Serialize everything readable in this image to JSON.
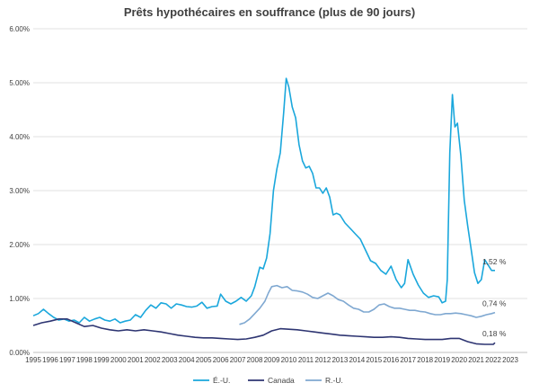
{
  "chart_data": {
    "type": "line",
    "title": "Prêts hypothécaires en souffrance (plus de 90 jours)",
    "xlabel": "",
    "ylabel": "",
    "ylim": [
      0,
      6
    ],
    "xlim": [
      1995,
      2024
    ],
    "y_ticks": [
      0,
      1,
      2,
      3,
      4,
      5,
      6
    ],
    "y_tick_labels": [
      "0.00%",
      "1.00%",
      "2.00%",
      "3.00%",
      "4.00%",
      "5.00%",
      "6.00%"
    ],
    "x_ticks": [
      1995,
      1996,
      1997,
      1998,
      1999,
      2000,
      2001,
      2002,
      2003,
      2004,
      2005,
      2006,
      2007,
      2008,
      2009,
      2010,
      2011,
      2012,
      2013,
      2014,
      2015,
      2016,
      2017,
      2018,
      2019,
      2020,
      2021,
      2022,
      2023
    ],
    "x_tick_labels": [
      "1995",
      "1996",
      "1997",
      "1998",
      "1999",
      "2000",
      "2001",
      "2002",
      "2003",
      "2004",
      "2005",
      "2006",
      "2007",
      "2008",
      "2009",
      "2010",
      "2011",
      "2012",
      "2013",
      "2014",
      "2015",
      "2016",
      "2017",
      "2018",
      "2019",
      "2020",
      "2021",
      "2022",
      "2023"
    ],
    "grid": "horizontal",
    "legend_position": "bottom",
    "series": [
      {
        "name": "É.-U.",
        "color": "#1aa7dc",
        "end_label": "1,52 %",
        "points": [
          [
            1995,
            0.68
          ],
          [
            1995.3,
            0.72
          ],
          [
            1995.6,
            0.8
          ],
          [
            1995.9,
            0.72
          ],
          [
            1996.2,
            0.65
          ],
          [
            1996.5,
            0.6
          ],
          [
            1996.8,
            0.62
          ],
          [
            1997.1,
            0.58
          ],
          [
            1997.4,
            0.6
          ],
          [
            1997.7,
            0.55
          ],
          [
            1998,
            0.65
          ],
          [
            1998.3,
            0.58
          ],
          [
            1998.6,
            0.62
          ],
          [
            1998.9,
            0.65
          ],
          [
            1999.2,
            0.6
          ],
          [
            1999.5,
            0.58
          ],
          [
            1999.8,
            0.62
          ],
          [
            2000.1,
            0.55
          ],
          [
            2000.4,
            0.58
          ],
          [
            2000.7,
            0.6
          ],
          [
            2001,
            0.7
          ],
          [
            2001.3,
            0.65
          ],
          [
            2001.6,
            0.78
          ],
          [
            2001.9,
            0.88
          ],
          [
            2002.2,
            0.82
          ],
          [
            2002.5,
            0.92
          ],
          [
            2002.8,
            0.9
          ],
          [
            2003.1,
            0.82
          ],
          [
            2003.4,
            0.9
          ],
          [
            2003.7,
            0.88
          ],
          [
            2004,
            0.85
          ],
          [
            2004.3,
            0.84
          ],
          [
            2004.6,
            0.86
          ],
          [
            2004.9,
            0.93
          ],
          [
            2005.2,
            0.82
          ],
          [
            2005.5,
            0.85
          ],
          [
            2005.8,
            0.86
          ],
          [
            2006,
            1.08
          ],
          [
            2006.3,
            0.95
          ],
          [
            2006.6,
            0.9
          ],
          [
            2006.9,
            0.95
          ],
          [
            2007.2,
            1.02
          ],
          [
            2007.5,
            0.95
          ],
          [
            2007.8,
            1.05
          ],
          [
            2008,
            1.22
          ],
          [
            2008.3,
            1.58
          ],
          [
            2008.5,
            1.55
          ],
          [
            2008.7,
            1.75
          ],
          [
            2008.9,
            2.2
          ],
          [
            2009.1,
            3.0
          ],
          [
            2009.3,
            3.4
          ],
          [
            2009.5,
            3.7
          ],
          [
            2009.7,
            4.45
          ],
          [
            2009.85,
            5.08
          ],
          [
            2010,
            4.92
          ],
          [
            2010.2,
            4.55
          ],
          [
            2010.4,
            4.35
          ],
          [
            2010.6,
            3.85
          ],
          [
            2010.8,
            3.55
          ],
          [
            2011,
            3.42
          ],
          [
            2011.2,
            3.45
          ],
          [
            2011.4,
            3.32
          ],
          [
            2011.6,
            3.05
          ],
          [
            2011.8,
            3.05
          ],
          [
            2012,
            2.95
          ],
          [
            2012.2,
            3.05
          ],
          [
            2012.4,
            2.88
          ],
          [
            2012.6,
            2.55
          ],
          [
            2012.8,
            2.58
          ],
          [
            2013,
            2.55
          ],
          [
            2013.3,
            2.4
          ],
          [
            2013.6,
            2.3
          ],
          [
            2013.9,
            2.2
          ],
          [
            2014.2,
            2.1
          ],
          [
            2014.5,
            1.9
          ],
          [
            2014.8,
            1.7
          ],
          [
            2015.1,
            1.65
          ],
          [
            2015.4,
            1.52
          ],
          [
            2015.7,
            1.45
          ],
          [
            2016,
            1.6
          ],
          [
            2016.3,
            1.35
          ],
          [
            2016.6,
            1.2
          ],
          [
            2016.8,
            1.28
          ],
          [
            2017,
            1.72
          ],
          [
            2017.3,
            1.45
          ],
          [
            2017.6,
            1.25
          ],
          [
            2017.9,
            1.1
          ],
          [
            2018.2,
            1.02
          ],
          [
            2018.5,
            1.05
          ],
          [
            2018.8,
            1.03
          ],
          [
            2019,
            0.92
          ],
          [
            2019.2,
            0.95
          ],
          [
            2019.3,
            1.35
          ],
          [
            2019.45,
            3.7
          ],
          [
            2019.6,
            4.78
          ],
          [
            2019.75,
            4.18
          ],
          [
            2019.9,
            4.25
          ],
          [
            2020.1,
            3.65
          ],
          [
            2020.3,
            2.82
          ],
          [
            2020.5,
            2.35
          ],
          [
            2020.7,
            1.92
          ],
          [
            2020.9,
            1.48
          ],
          [
            2021.1,
            1.28
          ],
          [
            2021.3,
            1.35
          ],
          [
            2021.5,
            1.72
          ],
          [
            2021.7,
            1.62
          ],
          [
            2021.9,
            1.52
          ],
          [
            2022.1,
            1.52
          ]
        ]
      },
      {
        "name": "Canada",
        "color": "#2e3572",
        "end_label": "0,18 %",
        "points": [
          [
            1995,
            0.5
          ],
          [
            1995.5,
            0.55
          ],
          [
            1996,
            0.58
          ],
          [
            1996.5,
            0.62
          ],
          [
            1997,
            0.62
          ],
          [
            1997.5,
            0.55
          ],
          [
            1998,
            0.48
          ],
          [
            1998.5,
            0.5
          ],
          [
            1999,
            0.45
          ],
          [
            1999.5,
            0.42
          ],
          [
            2000,
            0.4
          ],
          [
            2000.5,
            0.42
          ],
          [
            2001,
            0.4
          ],
          [
            2001.5,
            0.42
          ],
          [
            2002,
            0.4
          ],
          [
            2002.5,
            0.38
          ],
          [
            2003,
            0.35
          ],
          [
            2003.5,
            0.32
          ],
          [
            2004,
            0.3
          ],
          [
            2004.5,
            0.28
          ],
          [
            2005,
            0.27
          ],
          [
            2005.5,
            0.27
          ],
          [
            2006,
            0.26
          ],
          [
            2006.5,
            0.25
          ],
          [
            2007,
            0.24
          ],
          [
            2007.5,
            0.25
          ],
          [
            2008,
            0.28
          ],
          [
            2008.5,
            0.32
          ],
          [
            2009,
            0.4
          ],
          [
            2009.5,
            0.44
          ],
          [
            2010,
            0.43
          ],
          [
            2010.5,
            0.42
          ],
          [
            2011,
            0.4
          ],
          [
            2011.5,
            0.38
          ],
          [
            2012,
            0.36
          ],
          [
            2012.5,
            0.34
          ],
          [
            2013,
            0.32
          ],
          [
            2013.5,
            0.31
          ],
          [
            2014,
            0.3
          ],
          [
            2014.5,
            0.29
          ],
          [
            2015,
            0.28
          ],
          [
            2015.5,
            0.28
          ],
          [
            2016,
            0.29
          ],
          [
            2016.5,
            0.28
          ],
          [
            2017,
            0.26
          ],
          [
            2017.5,
            0.25
          ],
          [
            2018,
            0.24
          ],
          [
            2018.5,
            0.24
          ],
          [
            2019,
            0.24
          ],
          [
            2019.5,
            0.26
          ],
          [
            2020,
            0.26
          ],
          [
            2020.5,
            0.2
          ],
          [
            2021,
            0.16
          ],
          [
            2021.5,
            0.15
          ],
          [
            2022,
            0.15
          ],
          [
            2022.1,
            0.18
          ]
        ]
      },
      {
        "name": "R.-U.",
        "color": "#7fa8d1",
        "end_label": "0,74 %",
        "points": [
          [
            2007.1,
            0.52
          ],
          [
            2007.4,
            0.55
          ],
          [
            2007.7,
            0.62
          ],
          [
            2008,
            0.72
          ],
          [
            2008.3,
            0.82
          ],
          [
            2008.6,
            0.95
          ],
          [
            2008.8,
            1.1
          ],
          [
            2009,
            1.22
          ],
          [
            2009.3,
            1.24
          ],
          [
            2009.6,
            1.2
          ],
          [
            2009.9,
            1.22
          ],
          [
            2010.2,
            1.15
          ],
          [
            2010.5,
            1.14
          ],
          [
            2010.8,
            1.12
          ],
          [
            2011.1,
            1.08
          ],
          [
            2011.4,
            1.02
          ],
          [
            2011.7,
            1.0
          ],
          [
            2012,
            1.05
          ],
          [
            2012.3,
            1.1
          ],
          [
            2012.6,
            1.05
          ],
          [
            2012.9,
            0.98
          ],
          [
            2013.2,
            0.95
          ],
          [
            2013.5,
            0.88
          ],
          [
            2013.8,
            0.82
          ],
          [
            2014.1,
            0.8
          ],
          [
            2014.4,
            0.75
          ],
          [
            2014.7,
            0.75
          ],
          [
            2015,
            0.8
          ],
          [
            2015.3,
            0.88
          ],
          [
            2015.6,
            0.9
          ],
          [
            2015.9,
            0.85
          ],
          [
            2016.2,
            0.82
          ],
          [
            2016.5,
            0.82
          ],
          [
            2016.8,
            0.8
          ],
          [
            2017.1,
            0.78
          ],
          [
            2017.4,
            0.78
          ],
          [
            2017.7,
            0.76
          ],
          [
            2018,
            0.75
          ],
          [
            2018.3,
            0.72
          ],
          [
            2018.6,
            0.7
          ],
          [
            2018.9,
            0.7
          ],
          [
            2019.2,
            0.72
          ],
          [
            2019.5,
            0.72
          ],
          [
            2019.8,
            0.73
          ],
          [
            2020.1,
            0.72
          ],
          [
            2020.4,
            0.7
          ],
          [
            2020.7,
            0.68
          ],
          [
            2021,
            0.65
          ],
          [
            2021.3,
            0.67
          ],
          [
            2021.6,
            0.7
          ],
          [
            2021.9,
            0.72
          ],
          [
            2022.1,
            0.74
          ]
        ]
      }
    ]
  }
}
